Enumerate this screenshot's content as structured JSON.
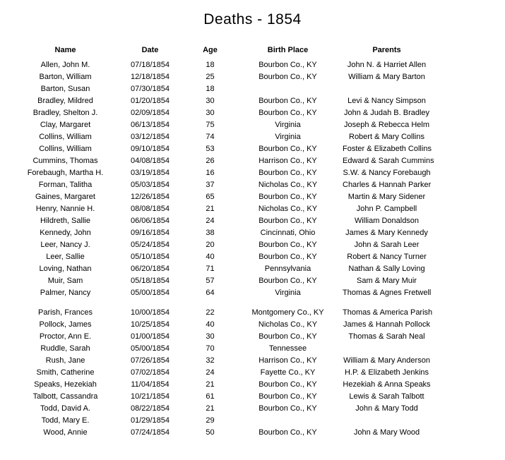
{
  "page": {
    "title": "Deaths - 1854",
    "background_color": "#ffffff",
    "text_color": "#000000"
  },
  "table": {
    "columns": [
      "Name",
      "Date",
      "Age",
      "Birth Place",
      "Parents"
    ],
    "column_keys": [
      "name",
      "date",
      "age",
      "birth-place",
      "parents"
    ],
    "groups": [
      {
        "rows": [
          [
            "Allen, John M.",
            "07/18/1854",
            "18",
            "Bourbon Co., KY",
            "John N. & Harriet Allen"
          ],
          [
            "Barton, William",
            "12/18/1854",
            "25",
            "Bourbon Co., KY",
            "William & Mary Barton"
          ],
          [
            "Barton, Susan",
            "07/30/1854",
            "18",
            "",
            ""
          ],
          [
            "Bradley, Mildred",
            "01/20/1854",
            "30",
            "Bourbon Co., KY",
            "Levi & Nancy Simpson"
          ],
          [
            "Bradley, Shelton J.",
            "02/09/1854",
            "30",
            "Bourbon Co., KY",
            "John & Judah B. Bradley"
          ],
          [
            "Clay, Margaret",
            "06/13/1854",
            "75",
            "Virginia",
            "Joseph & Rebecca Helm"
          ],
          [
            "Collins, William",
            "03/12/1854",
            "74",
            "Virginia",
            "Robert & Mary Collins"
          ],
          [
            "Collins, William",
            "09/10/1854",
            "53",
            "Bourbon Co., KY",
            "Foster & Elizabeth Collins"
          ],
          [
            "Cummins, Thomas",
            "04/08/1854",
            "26",
            "Harrison Co., KY",
            "Edward & Sarah Cummins"
          ],
          [
            "Forebaugh, Martha H.",
            "03/19/1854",
            "16",
            "Bourbon Co., KY",
            "S.W. & Nancy Forebaugh"
          ],
          [
            "Forman, Talitha",
            "05/03/1854",
            "37",
            "Nicholas Co., KY",
            "Charles & Hannah Parker"
          ],
          [
            "Gaines, Margaret",
            "12/26/1854",
            "65",
            "Bourbon Co., KY",
            "Martin & Mary Sidener"
          ],
          [
            "Henry, Nannie H.",
            "08/08/1854",
            "21",
            "Nicholas Co., KY",
            "John P. Campbell"
          ],
          [
            "Hildreth, Sallie",
            "06/06/1854",
            "24",
            "Bourbon Co., KY",
            "William Donaldson"
          ],
          [
            "Kennedy, John",
            "09/16/1854",
            "38",
            "Cincinnati, Ohio",
            "James & Mary Kennedy"
          ],
          [
            "Leer, Nancy J.",
            "05/24/1854",
            "20",
            "Bourbon Co., KY",
            "John & Sarah Leer"
          ],
          [
            "Leer, Sallie",
            "05/10/1854",
            "40",
            "Bourbon Co., KY",
            "Robert & Nancy Turner"
          ],
          [
            "Loving, Nathan",
            "06/20/1854",
            "71",
            "Pennsylvania",
            "Nathan & Sally Loving"
          ],
          [
            "Muir, Sam",
            "05/18/1854",
            "57",
            "Bourbon Co., KY",
            "Sam & Mary Muir"
          ],
          [
            "Palmer, Nancy",
            "05/00/1854",
            "64",
            "Virginia",
            "Thomas & Agnes Fretwell"
          ]
        ]
      },
      {
        "rows": [
          [
            "Parish, Frances",
            "10/00/1854",
            "22",
            "Montgomery Co., KY",
            "Thomas & America Parish"
          ],
          [
            "Pollock, James",
            "10/25/1854",
            "40",
            "Nicholas Co., KY",
            "James & Hannah Pollock"
          ],
          [
            "Proctor, Ann E.",
            "01/00/1854",
            "30",
            "Bourbon Co., KY",
            "Thomas & Sarah Neal"
          ],
          [
            "Ruddle, Sarah",
            "05/00/1854",
            "70",
            "Tennessee",
            ""
          ],
          [
            "Rush, Jane",
            "07/26/1854",
            "32",
            "Harrison Co., KY",
            "William & Mary Anderson"
          ],
          [
            "Smith, Catherine",
            "07/02/1854",
            "24",
            "Fayette Co., KY",
            "H.P. & Elizabeth Jenkins"
          ],
          [
            "Speaks, Hezekiah",
            "11/04/1854",
            "21",
            "Bourbon Co., KY",
            "Hezekiah & Anna Speaks"
          ],
          [
            "Talbott, Cassandra",
            "10/21/1854",
            "61",
            "Bourbon Co., KY",
            "Lewis & Sarah Talbott"
          ],
          [
            "Todd, David A.",
            "08/22/1854",
            "21",
            "Bourbon Co., KY",
            "John & Mary Todd"
          ],
          [
            "Todd, Mary E.",
            "01/29/1854",
            "29",
            "",
            ""
          ],
          [
            "Wood, Annie",
            "07/24/1854",
            "50",
            "Bourbon Co., KY",
            "John & Mary Wood"
          ]
        ]
      }
    ]
  }
}
